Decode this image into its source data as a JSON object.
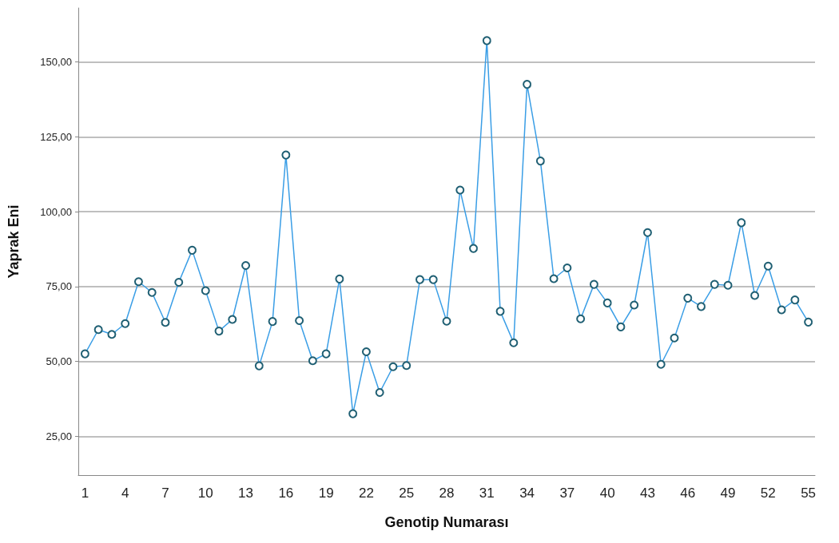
{
  "chart_data": {
    "type": "line",
    "xlabel": "Genotip Numarası",
    "ylabel": "Yaprak Eni",
    "categories": [
      "1",
      null,
      null,
      "4",
      null,
      null,
      "7",
      null,
      null,
      "10",
      null,
      null,
      "13",
      null,
      null,
      "16",
      null,
      null,
      "19",
      null,
      null,
      "22",
      null,
      null,
      "25",
      null,
      null,
      "28",
      null,
      null,
      "31",
      null,
      null,
      "34",
      null,
      null,
      "37",
      null,
      null,
      "40",
      null,
      null,
      "43",
      null,
      null,
      "46",
      null,
      null,
      "49",
      null,
      null,
      "52",
      null,
      null,
      "55"
    ],
    "series": [
      {
        "color": "#3a9ee6",
        "values": [
          52.5,
          60.6,
          59.0,
          62.6,
          76.6,
          73.0,
          63.0,
          76.4,
          87.1,
          73.6,
          60.1,
          64.0,
          82.0,
          48.5,
          63.3,
          118.9,
          63.6,
          50.2,
          52.5,
          77.5,
          32.5,
          53.2,
          39.6,
          48.2,
          48.6,
          77.3,
          77.3,
          63.4,
          107.2,
          87.7,
          157.1,
          66.7,
          56.2,
          142.5,
          116.9,
          77.6,
          81.2,
          64.2,
          75.7,
          69.5,
          61.5,
          68.8,
          93.0,
          49.0,
          57.8,
          71.1,
          68.3,
          75.7,
          75.4,
          96.3,
          72.0,
          81.8,
          67.2,
          70.5,
          63.1
        ]
      }
    ],
    "ylim": [
      12,
      168
    ],
    "yticks": [
      {
        "value": 25,
        "label": "25,00"
      },
      {
        "value": 50,
        "label": "50,00"
      },
      {
        "value": 75,
        "label": "75,00"
      },
      {
        "value": 100,
        "label": "100,00"
      },
      {
        "value": 125,
        "label": "125,00"
      },
      {
        "value": 150,
        "label": "150,00"
      }
    ],
    "grid": "y",
    "marker": "circle",
    "line_style": "solid"
  }
}
